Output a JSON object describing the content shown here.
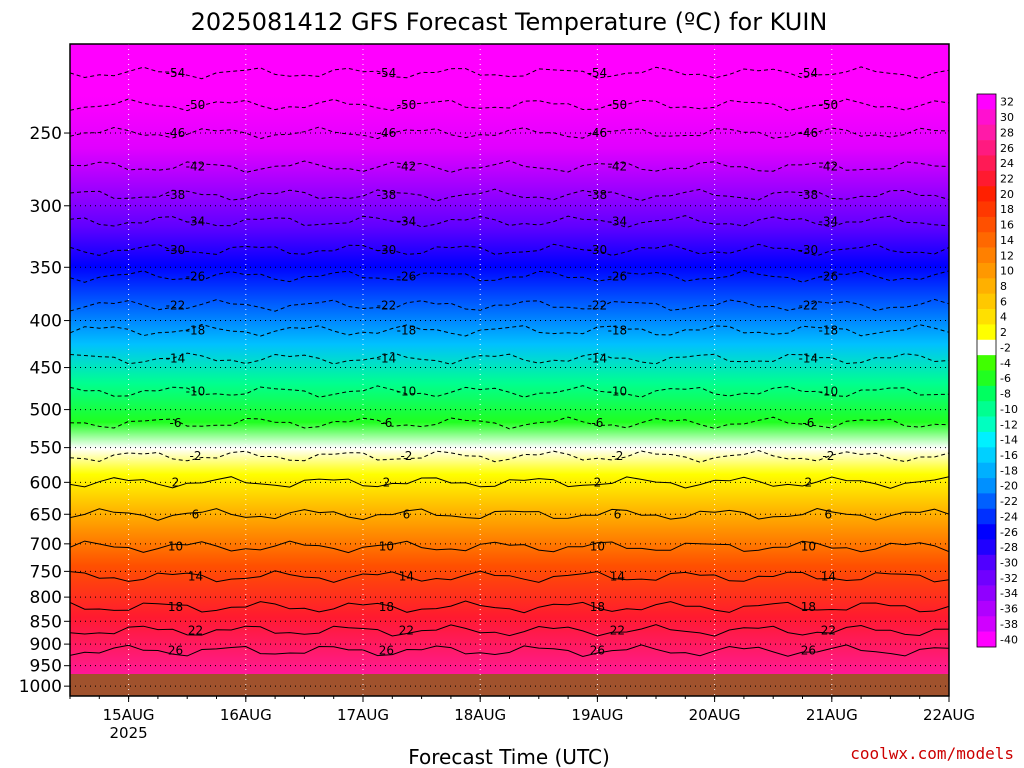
{
  "title": "2025081412 GFS Forecast Temperature (ºC) for KUIN",
  "xlabel": "Forecast Time (UTC)",
  "credit": "coolwx.com/models",
  "chart_data": {
    "type": "heatmap",
    "title": "2025081412 GFS Forecast Temperature (ºC) for KUIN",
    "xlabel": "Forecast Time (UTC)",
    "ylabel": "",
    "y_scale": "log-pressure",
    "x_range": [
      "2025-08-14T12:00Z",
      "2025-08-22T00:00Z"
    ],
    "x_ticks": [
      {
        "label": "15AUG",
        "sub": "2025",
        "time": "2025-08-15T00:00Z"
      },
      {
        "label": "16AUG",
        "sub": "",
        "time": "2025-08-16T00:00Z"
      },
      {
        "label": "17AUG",
        "sub": "",
        "time": "2025-08-17T00:00Z"
      },
      {
        "label": "18AUG",
        "sub": "",
        "time": "2025-08-18T00:00Z"
      },
      {
        "label": "19AUG",
        "sub": "",
        "time": "2025-08-19T00:00Z"
      },
      {
        "label": "20AUG",
        "sub": "",
        "time": "2025-08-20T00:00Z"
      },
      {
        "label": "21AUG",
        "sub": "",
        "time": "2025-08-21T00:00Z"
      },
      {
        "label": "22AUG",
        "sub": "",
        "time": "2025-08-22T00:00Z"
      }
    ],
    "y_ticks": [
      250,
      300,
      350,
      400,
      450,
      500,
      550,
      600,
      650,
      700,
      750,
      800,
      850,
      900,
      950,
      1000
    ],
    "y_range": [
      200,
      1025
    ],
    "contour_interval": 4,
    "colorbar": {
      "labels": [
        32,
        30,
        28,
        26,
        24,
        22,
        20,
        18,
        16,
        14,
        12,
        10,
        8,
        6,
        4,
        2,
        -2,
        -4,
        -6,
        -8,
        -10,
        -12,
        -14,
        -16,
        -18,
        -20,
        -22,
        -24,
        -26,
        -28,
        -30,
        -32,
        -34,
        -36,
        -38,
        -40
      ],
      "colors": [
        "#ff00ff",
        "#ff10d0",
        "#ff1aa8",
        "#ff1a80",
        "#ff1a55",
        "#ff1a30",
        "#ff2000",
        "#ff3800",
        "#ff5000",
        "#ff6800",
        "#ff8000",
        "#ff9800",
        "#ffb000",
        "#ffc800",
        "#ffe000",
        "#ffff00",
        "#ffffff",
        "#40ff00",
        "#20ff20",
        "#00ff60",
        "#00ff90",
        "#00ffc0",
        "#00f0ff",
        "#00d0ff",
        "#00b0ff",
        "#0090ff",
        "#0060ff",
        "#0030ff",
        "#0000ff",
        "#2000ff",
        "#5000ff",
        "#7000ff",
        "#9000ff",
        "#b000ff",
        "#d000ff",
        "#ff00ff"
      ]
    },
    "isotherms": [
      {
        "temp": -54,
        "pressure": 215
      },
      {
        "temp": -50,
        "pressure": 233
      },
      {
        "temp": -46,
        "pressure": 250
      },
      {
        "temp": -42,
        "pressure": 272
      },
      {
        "temp": -38,
        "pressure": 292
      },
      {
        "temp": -34,
        "pressure": 312
      },
      {
        "temp": -30,
        "pressure": 335
      },
      {
        "temp": -26,
        "pressure": 358
      },
      {
        "temp": -22,
        "pressure": 385
      },
      {
        "temp": -18,
        "pressure": 410
      },
      {
        "temp": -14,
        "pressure": 440
      },
      {
        "temp": -10,
        "pressure": 478
      },
      {
        "temp": -6,
        "pressure": 517
      },
      {
        "temp": -2,
        "pressure": 562
      },
      {
        "temp": 2,
        "pressure": 600
      },
      {
        "temp": 6,
        "pressure": 650
      },
      {
        "temp": 10,
        "pressure": 705
      },
      {
        "temp": 14,
        "pressure": 760
      },
      {
        "temp": 18,
        "pressure": 820
      },
      {
        "temp": 22,
        "pressure": 870
      },
      {
        "temp": 26,
        "pressure": 915
      }
    ],
    "surface_pressure": 985,
    "grid": true
  }
}
